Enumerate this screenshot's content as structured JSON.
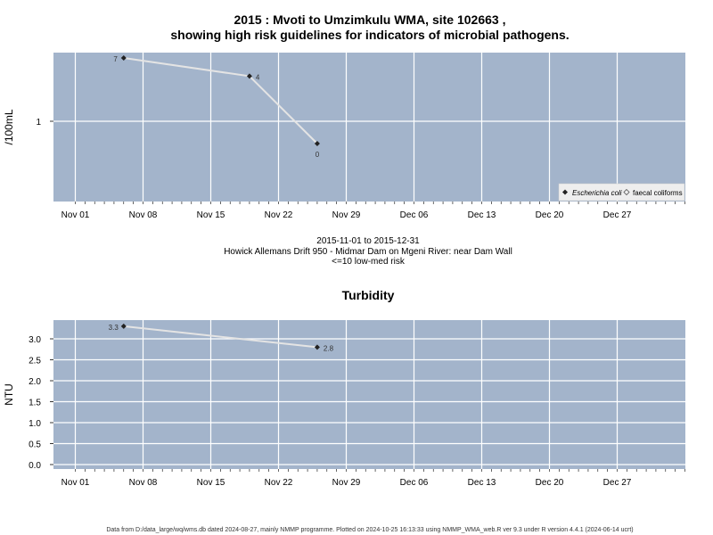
{
  "title_line1": "2015 : Mvoti to Umzimkulu WMA, site 102663 ,",
  "title_line2": "showing high risk guidelines for indicators of microbial pathogens.",
  "caption_lines": [
    "2015-11-01 to 2015-12-31",
    "Howick Allemans Drift 950 - Midmar Dam on Mgeni River: near Dam Wall",
    "<=10 low-med risk"
  ],
  "footer": "Data from D:/data_large/wq/wms.db dated 2024-08-27, mainly NMMP programme. Plotted on 2024-10-25 16:13:33 using NMMP_WMA_web.R ver 9.3 under R version 4.4.1 (2024-06-14 ucrt)",
  "colors": {
    "panel_bg": "#a3b4cb",
    "grid": "#ffffff",
    "line": "#e4e4e4",
    "point": "#222222"
  },
  "chart_data": [
    {
      "type": "line",
      "title": "",
      "xlabel": "",
      "ylabel": "/100mL",
      "y_scale": "log10",
      "x": [
        "2015-11-06",
        "2015-11-19",
        "2015-11-26"
      ],
      "series": [
        {
          "name": "Escherichia coli",
          "x": [
            "2015-11-06",
            "2015-11-19",
            "2015-11-26"
          ],
          "values": [
            7,
            4,
            0
          ],
          "labels": [
            "7",
            "4",
            "0"
          ]
        }
      ],
      "legend": {
        "placement": "bottom-right",
        "entries": [
          "Escherichia coli",
          "faecal coliforms"
        ]
      },
      "x_ticks": [
        "Nov 01",
        "Nov 08",
        "Nov 15",
        "Nov 22",
        "Nov 29",
        "Dec 06",
        "Dec 13",
        "Dec 20",
        "Dec 27"
      ],
      "x_tick_dates": [
        "2015-11-01",
        "2015-11-08",
        "2015-11-15",
        "2015-11-22",
        "2015-11-29",
        "2015-12-06",
        "2015-12-13",
        "2015-12-20",
        "2015-12-27"
      ],
      "y_ticks": [
        {
          "value": 1,
          "label": "1"
        }
      ],
      "grid": true
    },
    {
      "type": "line",
      "title": "Turbidity",
      "xlabel": "",
      "ylabel": "NTU",
      "ylim": [
        0,
        3.3
      ],
      "series": [
        {
          "name": "",
          "x": [
            "2015-11-06",
            "2015-11-26"
          ],
          "values": [
            3.3,
            2.8
          ],
          "labels": [
            "3.3",
            "2.8"
          ]
        }
      ],
      "x_ticks": [
        "Nov 01",
        "Nov 08",
        "Nov 15",
        "Nov 22",
        "Nov 29",
        "Dec 06",
        "Dec 13",
        "Dec 20",
        "Dec 27"
      ],
      "x_tick_dates": [
        "2015-11-01",
        "2015-11-08",
        "2015-11-15",
        "2015-11-22",
        "2015-11-29",
        "2015-12-06",
        "2015-12-13",
        "2015-12-20",
        "2015-12-27"
      ],
      "y_ticks": [
        {
          "value": 0.0,
          "label": "0.0"
        },
        {
          "value": 0.5,
          "label": "0.5"
        },
        {
          "value": 1.0,
          "label": "1.0"
        },
        {
          "value": 1.5,
          "label": "1.5"
        },
        {
          "value": 2.0,
          "label": "2.0"
        },
        {
          "value": 2.5,
          "label": "2.5"
        },
        {
          "value": 3.0,
          "label": "3.0"
        }
      ],
      "grid": true
    }
  ]
}
